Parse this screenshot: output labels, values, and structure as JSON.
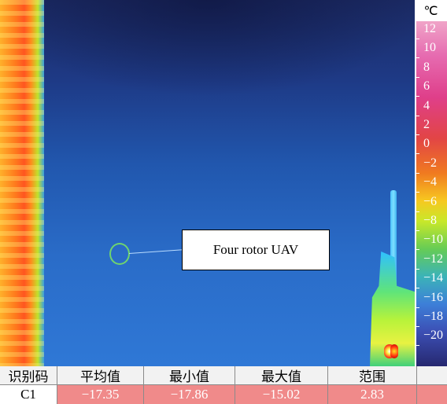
{
  "annotation": {
    "label": "Four rotor UAV"
  },
  "scale": {
    "unit": "℃",
    "ticks": [
      "12",
      "10",
      "8",
      "6",
      "4",
      "2",
      "0",
      "−2",
      "−4",
      "−6",
      "−8",
      "−10",
      "−12",
      "−14",
      "−16",
      "−18",
      "−20"
    ]
  },
  "table": {
    "headers": [
      "识别码",
      "平均值",
      "最小值",
      "最大值",
      "范围",
      ""
    ],
    "rows": [
      {
        "id": "C1",
        "avg": "−17.35",
        "min": "−17.86",
        "max": "−15.02",
        "range": "2.83",
        "extra": ""
      }
    ]
  },
  "colors": {
    "row_bg": "#f08a8a",
    "marker": "#6fd46f"
  }
}
